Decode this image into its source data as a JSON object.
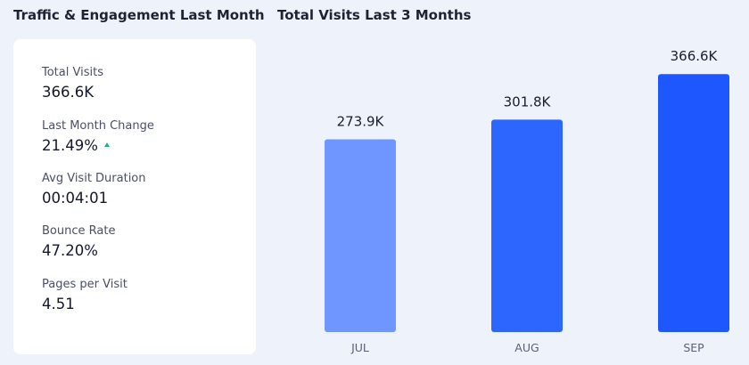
{
  "left_panel": {
    "title": "Traffic & Engagement Last Month",
    "metrics": [
      {
        "label": "Total Visits",
        "value": "366.6K"
      },
      {
        "label": "Last Month Change",
        "value": "21.49%",
        "trend": "up",
        "trend_color": "#1fb47a"
      },
      {
        "label": "Avg Visit Duration",
        "value": "00:04:01"
      },
      {
        "label": "Bounce Rate",
        "value": "47.20%"
      },
      {
        "label": "Pages per Visit",
        "value": "4.51"
      }
    ]
  },
  "right_panel": {
    "title": "Total Visits Last 3 Months"
  },
  "chart_data": {
    "type": "bar",
    "categories": [
      "JUL",
      "AUG",
      "SEP"
    ],
    "values": [
      273.9,
      301.8,
      366.6
    ],
    "value_labels": [
      "273.9K",
      "301.8K",
      "366.6K"
    ],
    "unit": "K",
    "ylim": [
      0,
      420
    ],
    "grid": false,
    "colors": [
      "#6f96ff",
      "#2c66ff",
      "#1f57ff"
    ]
  }
}
